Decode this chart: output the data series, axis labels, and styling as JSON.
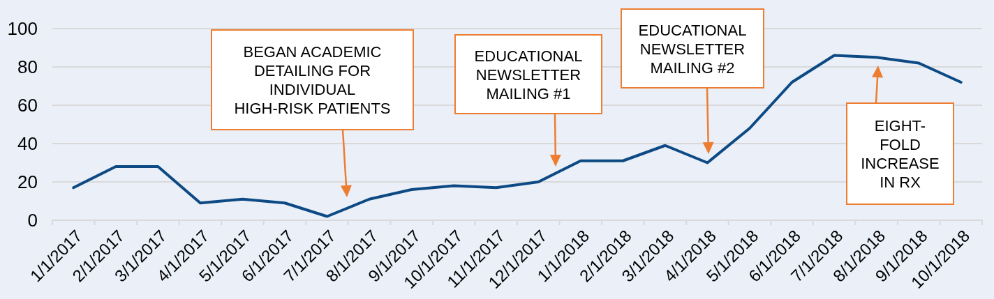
{
  "chart_data": {
    "type": "line",
    "categories": [
      "1/1/2017",
      "2/1/2017",
      "3/1/2017",
      "4/1/2017",
      "5/1/2017",
      "6/1/2017",
      "7/1/2017",
      "8/1/2017",
      "9/1/2017",
      "10/1/2017",
      "11/1/2017",
      "12/1/2017",
      "1/1/2018",
      "2/1/2018",
      "3/1/2018",
      "4/1/2018",
      "5/1/2018",
      "6/1/2018",
      "7/1/2018",
      "8/1/2018",
      "9/1/2018",
      "10/1/2018"
    ],
    "series": [
      {
        "color": "#0d4a84",
        "values": [
          17,
          28,
          28,
          9,
          11,
          9,
          2,
          11,
          16,
          18,
          17,
          20,
          31,
          31,
          39,
          30,
          48,
          72,
          86,
          85,
          82,
          72
        ]
      }
    ],
    "ylim": [
      0,
      100
    ],
    "yticks": [
      0,
      20,
      40,
      60,
      80,
      100
    ],
    "grid": "y",
    "annotations": [
      "BEGAN ACADEMIC\nDETAILING FOR\nINDIVIDUAL\nHIGH-RISK PATIENTS",
      "EDUCATIONAL\nNEWSLETTER\nMAILING #1",
      "EDUCATIONAL\nNEWSLETTER\nMAILING #2",
      "EIGHT-\nFOLD\nINCREASE\nIN RX"
    ]
  }
}
